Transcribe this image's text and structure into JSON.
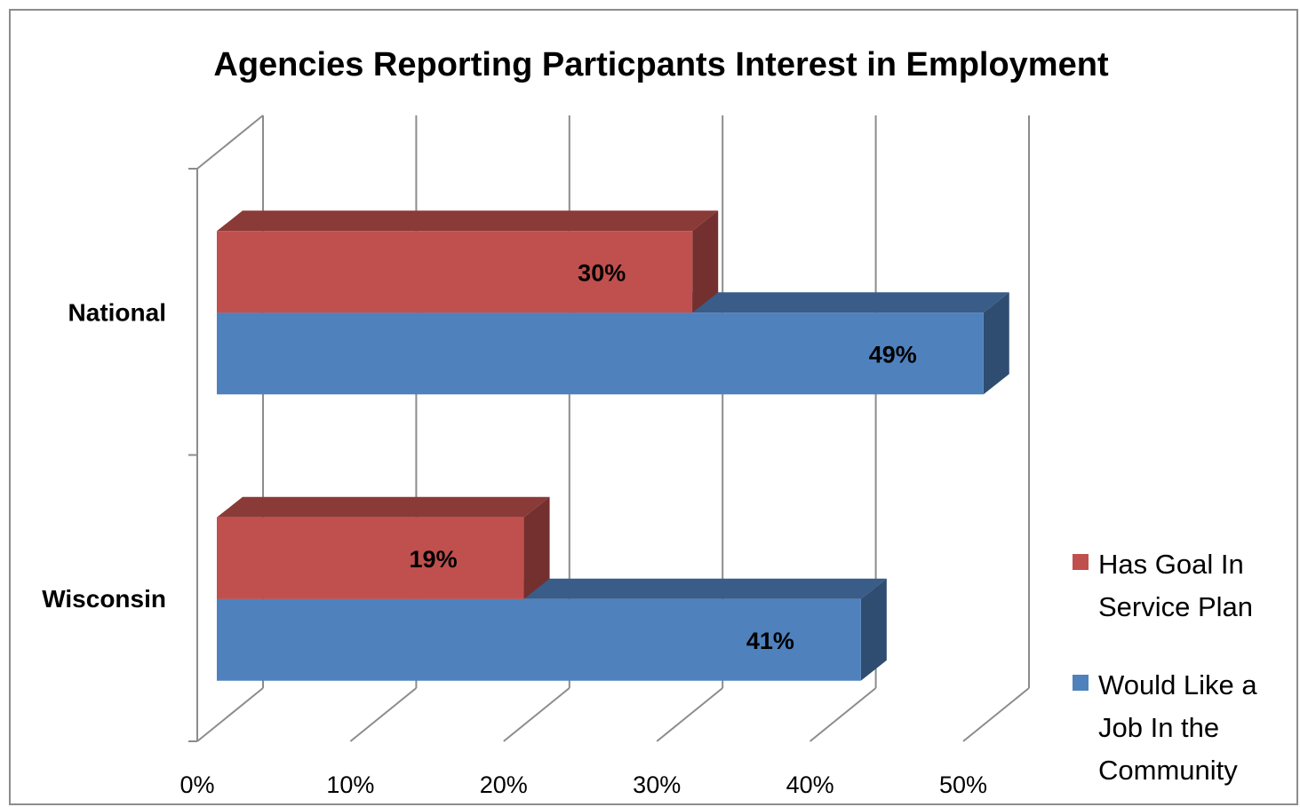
{
  "chart_data": {
    "type": "bar",
    "orientation": "horizontal",
    "three_d": true,
    "title": "Agencies Reporting Particpants Interest in Employment",
    "categories": [
      "National",
      "Wisconsin"
    ],
    "series": [
      {
        "name": "Has Goal In Service Plan",
        "legend_lines": [
          "Has Goal In",
          "Service Plan"
        ],
        "color": "#c0504d",
        "values": [
          30,
          19
        ],
        "labels": [
          "30%",
          "19%"
        ]
      },
      {
        "name": "Would Like a Job In the Community",
        "legend_lines": [
          "Would Like a",
          "Job In the",
          "Community"
        ],
        "color": "#4f81bd",
        "values": [
          49,
          41
        ],
        "labels": [
          "49%",
          "41%"
        ]
      }
    ],
    "x_ticks": [
      "0%",
      "10%",
      "20%",
      "30%",
      "40%",
      "50%"
    ],
    "xlim": [
      0,
      50
    ],
    "xlabel": "",
    "ylabel": "",
    "grid": true,
    "legend_position": "right"
  }
}
